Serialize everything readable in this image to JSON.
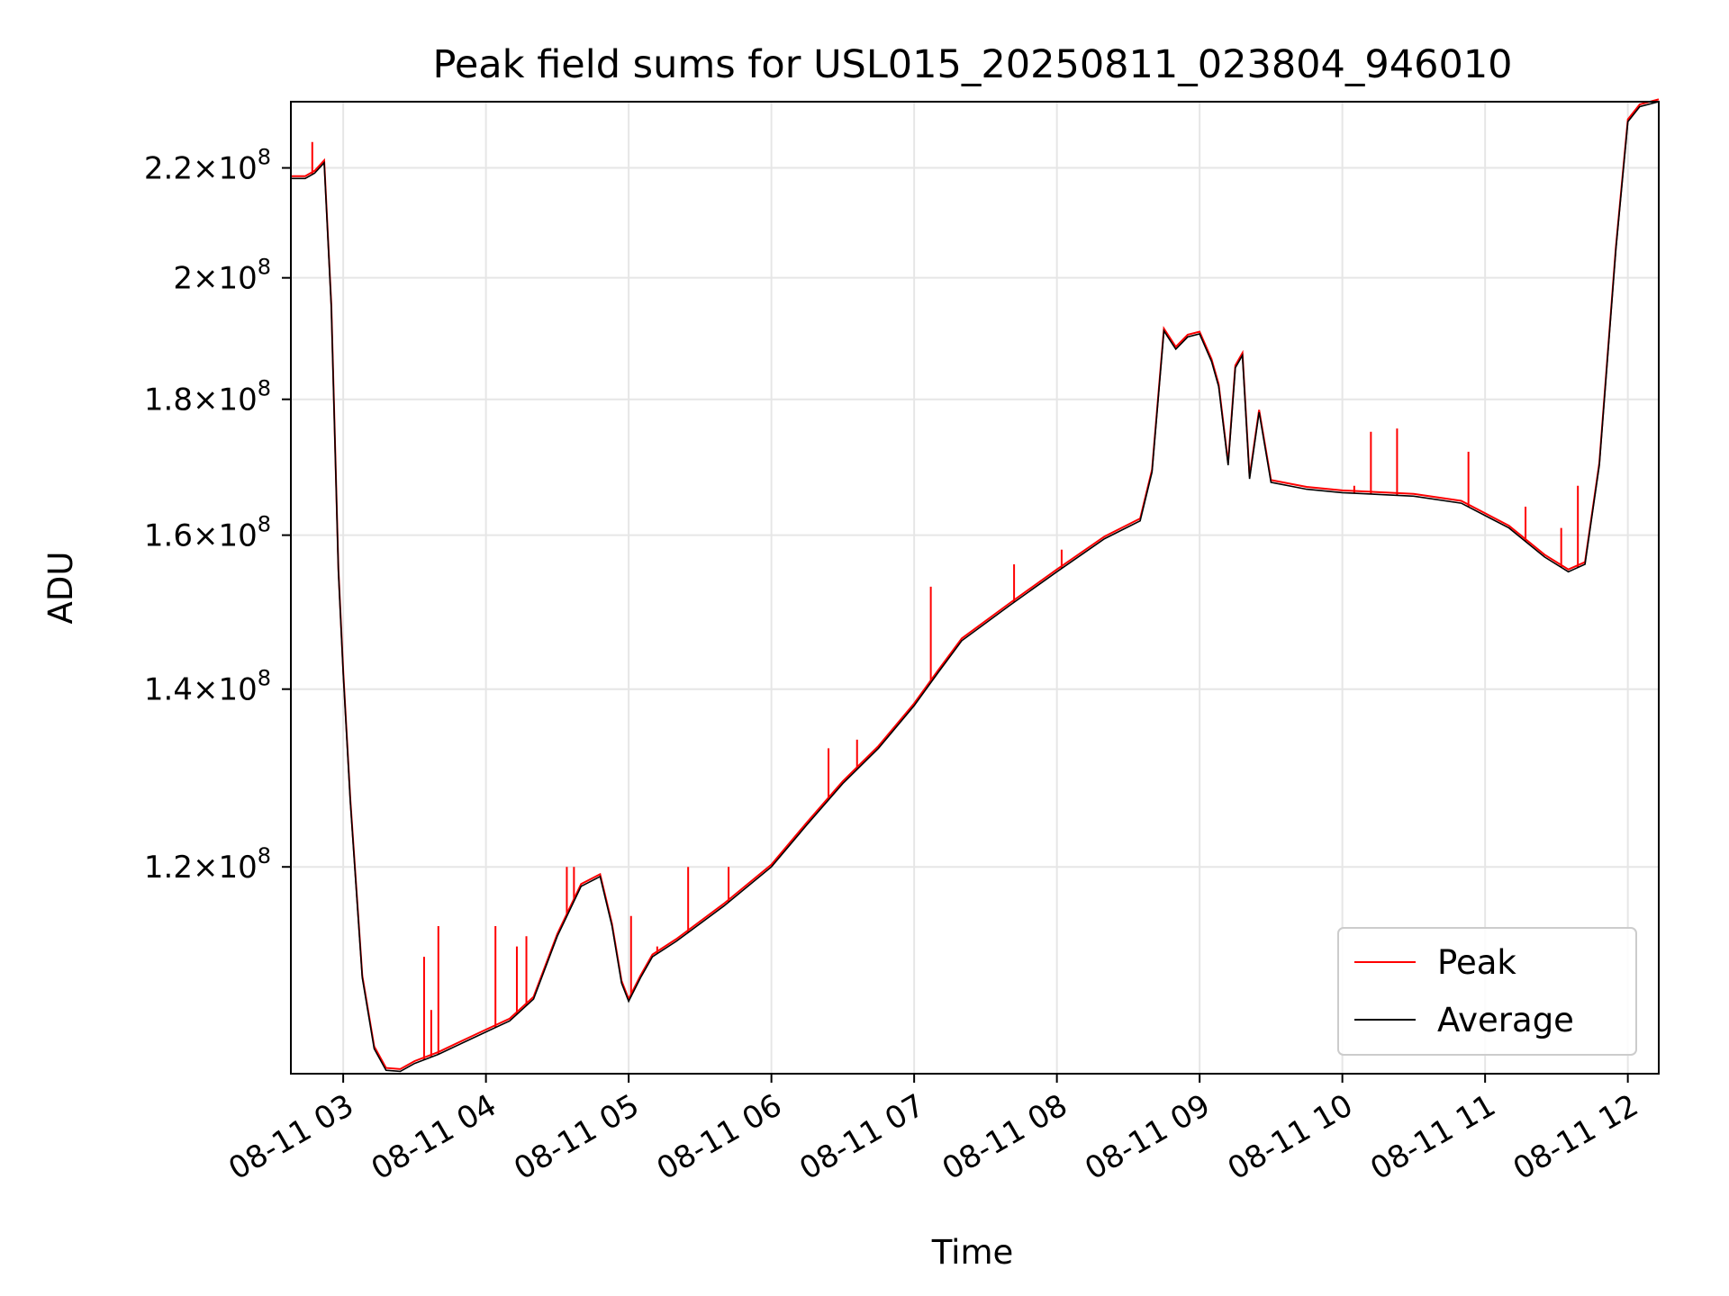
{
  "chart_data": {
    "type": "line",
    "title": "Peak field sums for USL015_20250811_023804_946010",
    "xlabel": "Time",
    "ylabel": "ADU",
    "y_scale": "log",
    "grid": true,
    "legend_position": "lower-right",
    "x_range": [
      "2025-08-11 02:38",
      "2025-08-11 12:13"
    ],
    "ylim": [
      100300000.0,
      233000000.0
    ],
    "x_ticks": [
      {
        "t": "2025-08-11 03:00",
        "label": "08-11 03"
      },
      {
        "t": "2025-08-11 04:00",
        "label": "08-11 04"
      },
      {
        "t": "2025-08-11 05:00",
        "label": "08-11 05"
      },
      {
        "t": "2025-08-11 06:00",
        "label": "08-11 06"
      },
      {
        "t": "2025-08-11 07:00",
        "label": "08-11 07"
      },
      {
        "t": "2025-08-11 08:00",
        "label": "08-11 08"
      },
      {
        "t": "2025-08-11 09:00",
        "label": "08-11 09"
      },
      {
        "t": "2025-08-11 10:00",
        "label": "08-11 10"
      },
      {
        "t": "2025-08-11 11:00",
        "label": "08-11 11"
      },
      {
        "t": "2025-08-11 12:00",
        "label": "08-11 12"
      }
    ],
    "y_ticks": [
      {
        "value": 120000000.0,
        "mantissa": "1.2",
        "base": "10",
        "exponent": "8"
      },
      {
        "value": 140000000.0,
        "mantissa": "1.4",
        "base": "10",
        "exponent": "8"
      },
      {
        "value": 160000000.0,
        "mantissa": "1.6",
        "base": "10",
        "exponent": "8"
      },
      {
        "value": 180000000.0,
        "mantissa": "1.8",
        "base": "10",
        "exponent": "8"
      },
      {
        "value": 200000000.0,
        "mantissa": "2",
        "base": "10",
        "exponent": "8"
      },
      {
        "value": 220000000.0,
        "mantissa": "2.2",
        "base": "10",
        "exponent": "8"
      }
    ],
    "series": [
      {
        "name": "Average",
        "color": "#000000",
        "points": [
          [
            "2025-08-11 02:38",
            218000000.0
          ],
          [
            "2025-08-11 02:44",
            218000000.0
          ],
          [
            "2025-08-11 02:48",
            219000000.0
          ],
          [
            "2025-08-11 02:52",
            221000000.0
          ],
          [
            "2025-08-11 02:55",
            195000000.0
          ],
          [
            "2025-08-11 02:58",
            155000000.0
          ],
          [
            "2025-08-11 03:00",
            142000000.0
          ],
          [
            "2025-08-11 03:03",
            127000000.0
          ],
          [
            "2025-08-11 03:08",
            109000000.0
          ],
          [
            "2025-08-11 03:13",
            102500000.0
          ],
          [
            "2025-08-11 03:18",
            100600000.0
          ],
          [
            "2025-08-11 03:24",
            100500000.0
          ],
          [
            "2025-08-11 03:30",
            101200000.0
          ],
          [
            "2025-08-11 03:40",
            102000000.0
          ],
          [
            "2025-08-11 03:50",
            103000000.0
          ],
          [
            "2025-08-11 04:00",
            104000000.0
          ],
          [
            "2025-08-11 04:10",
            105000000.0
          ],
          [
            "2025-08-11 04:20",
            107000000.0
          ],
          [
            "2025-08-11 04:30",
            113000000.0
          ],
          [
            "2025-08-11 04:40",
            118000000.0
          ],
          [
            "2025-08-11 04:48",
            119000000.0
          ],
          [
            "2025-08-11 04:53",
            114000000.0
          ],
          [
            "2025-08-11 04:57",
            108500000.0
          ],
          [
            "2025-08-11 05:00",
            106800000.0
          ],
          [
            "2025-08-11 05:05",
            109000000.0
          ],
          [
            "2025-08-11 05:10",
            111000000.0
          ],
          [
            "2025-08-11 05:20",
            112500000.0
          ],
          [
            "2025-08-11 05:40",
            116000000.0
          ],
          [
            "2025-08-11 06:00",
            120000000.0
          ],
          [
            "2025-08-11 06:15",
            124500000.0
          ],
          [
            "2025-08-11 06:30",
            129000000.0
          ],
          [
            "2025-08-11 06:45",
            133000000.0
          ],
          [
            "2025-08-11 07:00",
            138000000.0
          ],
          [
            "2025-08-11 07:10",
            142000000.0
          ],
          [
            "2025-08-11 07:20",
            146000000.0
          ],
          [
            "2025-08-11 07:40",
            150500000.0
          ],
          [
            "2025-08-11 08:00",
            155000000.0
          ],
          [
            "2025-08-11 08:20",
            159500000.0
          ],
          [
            "2025-08-11 08:35",
            162000000.0
          ],
          [
            "2025-08-11 08:40",
            169000000.0
          ],
          [
            "2025-08-11 08:45",
            191000000.0
          ],
          [
            "2025-08-11 08:50",
            188000000.0
          ],
          [
            "2025-08-11 08:55",
            190000000.0
          ],
          [
            "2025-08-11 09:00",
            190500000.0
          ],
          [
            "2025-08-11 09:05",
            186000000.0
          ],
          [
            "2025-08-11 09:08",
            182000000.0
          ],
          [
            "2025-08-11 09:12",
            170000000.0
          ],
          [
            "2025-08-11 09:15",
            185000000.0
          ],
          [
            "2025-08-11 09:18",
            187000000.0
          ],
          [
            "2025-08-11 09:21",
            168000000.0
          ],
          [
            "2025-08-11 09:25",
            178000000.0
          ],
          [
            "2025-08-11 09:30",
            167500000.0
          ],
          [
            "2025-08-11 09:45",
            166500000.0
          ],
          [
            "2025-08-11 10:00",
            166000000.0
          ],
          [
            "2025-08-11 10:30",
            165500000.0
          ],
          [
            "2025-08-11 10:50",
            164500000.0
          ],
          [
            "2025-08-11 11:10",
            161000000.0
          ],
          [
            "2025-08-11 11:25",
            157000000.0
          ],
          [
            "2025-08-11 11:35",
            155000000.0
          ],
          [
            "2025-08-11 11:42",
            156000000.0
          ],
          [
            "2025-08-11 11:48",
            170000000.0
          ],
          [
            "2025-08-11 11:55",
            205000000.0
          ],
          [
            "2025-08-11 12:00",
            229000000.0
          ],
          [
            "2025-08-11 12:05",
            232000000.0
          ],
          [
            "2025-08-11 12:13",
            233000000.0
          ]
        ]
      },
      {
        "name": "Peak",
        "color": "#ff0000",
        "spikes": [
          [
            "2025-08-11 02:47",
            225000000.0
          ],
          [
            "2025-08-11 03:34",
            111000000.0
          ],
          [
            "2025-08-11 03:37",
            106000000.0
          ],
          [
            "2025-08-11 03:40",
            114000000.0
          ],
          [
            "2025-08-11 04:04",
            114000000.0
          ],
          [
            "2025-08-11 04:13",
            112000000.0
          ],
          [
            "2025-08-11 04:17",
            113000000.0
          ],
          [
            "2025-08-11 04:34",
            120000000.0
          ],
          [
            "2025-08-11 04:37",
            120000000.0
          ],
          [
            "2025-08-11 05:01",
            115000000.0
          ],
          [
            "2025-08-11 05:12",
            112000000.0
          ],
          [
            "2025-08-11 05:25",
            120000000.0
          ],
          [
            "2025-08-11 05:42",
            120000000.0
          ],
          [
            "2025-08-11 06:24",
            133000000.0
          ],
          [
            "2025-08-11 06:36",
            134000000.0
          ],
          [
            "2025-08-11 06:48",
            134000000.0
          ],
          [
            "2025-08-11 07:07",
            153000000.0
          ],
          [
            "2025-08-11 07:42",
            156000000.0
          ],
          [
            "2025-08-11 08:02",
            158000000.0
          ],
          [
            "2025-08-11 10:05",
            167000000.0
          ],
          [
            "2025-08-11 10:12",
            175000000.0
          ],
          [
            "2025-08-11 10:23",
            175500000.0
          ],
          [
            "2025-08-11 10:53",
            172000000.0
          ],
          [
            "2025-08-11 11:17",
            164000000.0
          ],
          [
            "2025-08-11 11:32",
            161000000.0
          ],
          [
            "2025-08-11 11:39",
            167000000.0
          ]
        ]
      }
    ]
  }
}
